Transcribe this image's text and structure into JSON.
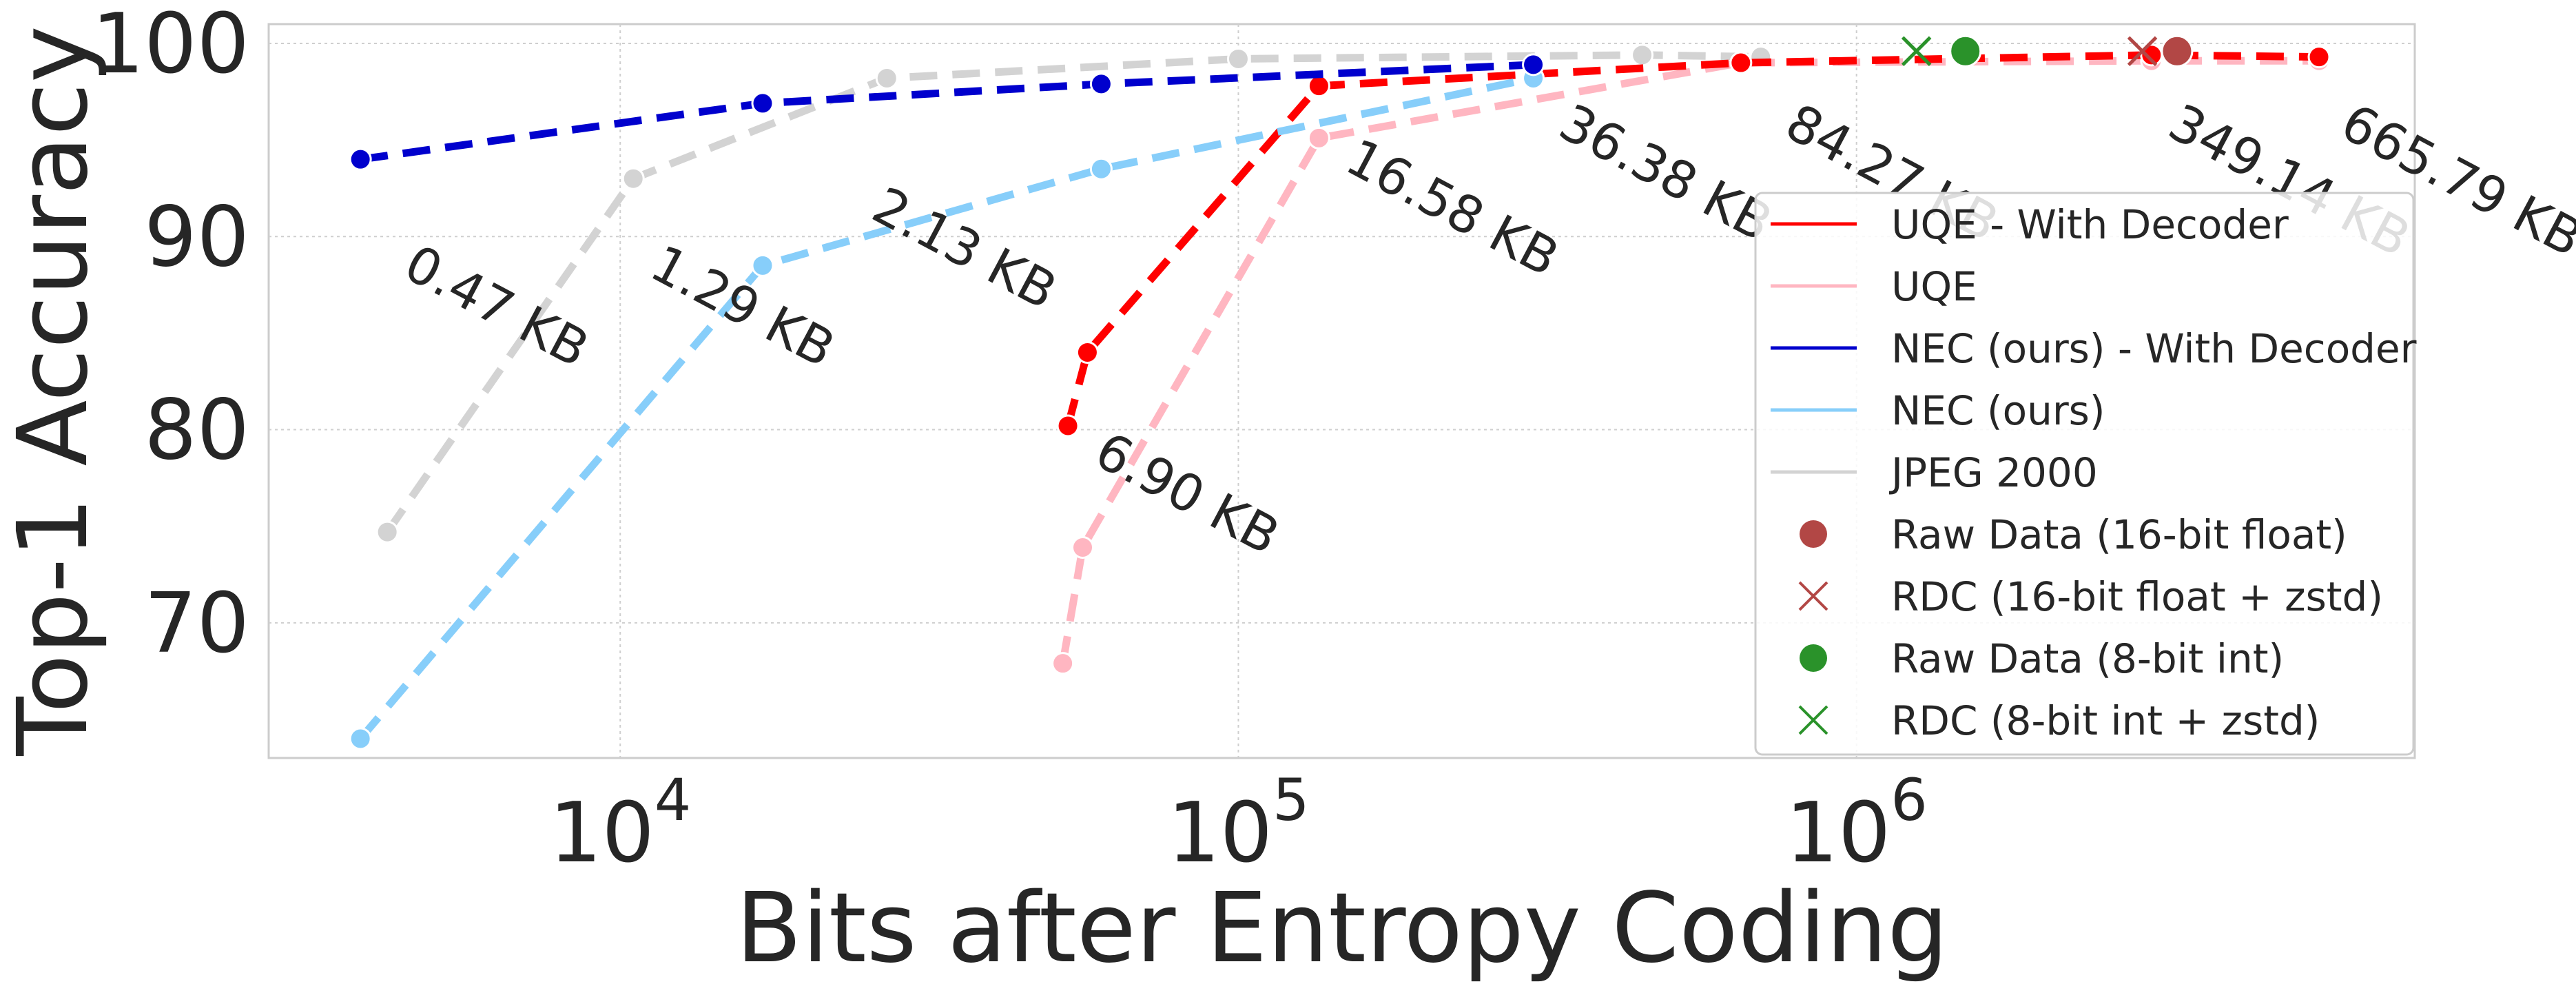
{
  "chart_data": {
    "type": "line",
    "xlabel": "Bits after Entropy Coding",
    "ylabel": "Top-1 Accuracy",
    "xscale": "log",
    "xlim": [
      2700,
      8000000
    ],
    "ylim": [
      63,
      101
    ],
    "grid": true,
    "legend_position": "right",
    "x_ticks": [
      {
        "value": 10000,
        "base": "10",
        "exp": "4"
      },
      {
        "value": 100000,
        "base": "10",
        "exp": "5"
      },
      {
        "value": 1000000,
        "base": "10",
        "exp": "6"
      }
    ],
    "y_ticks": [
      {
        "value": 70,
        "label": "70"
      },
      {
        "value": 80,
        "label": "80"
      },
      {
        "value": 90,
        "label": "90"
      },
      {
        "value": 100,
        "label": "100"
      }
    ],
    "series": [
      {
        "name": "JPEG 2000",
        "color": "#d3d3d3",
        "dashed": true,
        "x": [
          4200,
          10500,
          27000,
          100000,
          450000,
          700000
        ],
        "y": [
          74.7,
          93.0,
          98.2,
          99.2,
          99.4,
          99.3
        ]
      },
      {
        "name": "UQE",
        "color": "#ffb6c1",
        "dashed": true,
        "x": [
          52000,
          56000,
          135000,
          650000,
          3000000,
          5600000
        ],
        "y": [
          67.9,
          73.9,
          95.1,
          99.0,
          99.1,
          99.1
        ]
      },
      {
        "name": "UQE - With Decoder",
        "color": "#ff0000",
        "dashed": true,
        "x": [
          53000,
          57000,
          135000,
          650000,
          3000000,
          5600000
        ],
        "y": [
          80.2,
          84.0,
          97.8,
          99.0,
          99.4,
          99.3
        ]
      },
      {
        "name": "NEC (ours)",
        "color": "#87cefa",
        "dashed": true,
        "x": [
          3800,
          17000,
          60000,
          300000
        ],
        "y": [
          64.0,
          88.5,
          93.5,
          98.2
        ]
      },
      {
        "name": "NEC (ours) - With Decoder",
        "color": "#0000cd",
        "dashed": true,
        "x": [
          3800,
          17000,
          60000,
          300000
        ],
        "y": [
          94.0,
          96.9,
          97.9,
          98.9
        ]
      }
    ],
    "markers": [
      {
        "name": "Raw Data (16-bit float)",
        "shape": "circle",
        "color": "#b24745",
        "x": 3300000,
        "y": 99.6
      },
      {
        "name": "RDC (16-bit float + zstd)",
        "shape": "x",
        "color": "#b24745",
        "x": 2900000,
        "y": 99.6
      },
      {
        "name": "Raw Data (8-bit int)",
        "shape": "circle",
        "color": "#2a922a",
        "x": 1500000,
        "y": 99.6
      },
      {
        "name": "RDC (8-bit int + zstd)",
        "shape": "x",
        "color": "#2a922a",
        "x": 1250000,
        "y": 99.6
      }
    ],
    "annotations": [
      {
        "text": "0.47 KB",
        "x": 4200,
        "y": 88.0
      },
      {
        "text": "1.29 KB",
        "x": 10500,
        "y": 88.0
      },
      {
        "text": "2.13 KB",
        "x": 24000,
        "y": 91.0
      },
      {
        "text": "6.90 KB",
        "x": 55000,
        "y": 78.3
      },
      {
        "text": "16.58 KB",
        "x": 140000,
        "y": 93.5
      },
      {
        "text": "36.38 KB",
        "x": 310000,
        "y": 95.3
      },
      {
        "text": "84.27 KB",
        "x": 720000,
        "y": 95.3
      },
      {
        "text": "349.14 KB",
        "x": 3000000,
        "y": 95.3
      },
      {
        "text": "665.79 KB",
        "x": 5700000,
        "y": 95.3
      }
    ],
    "legend": [
      {
        "label": "UQE - With Decoder",
        "kind": "line",
        "color": "#ff0000"
      },
      {
        "label": "UQE",
        "kind": "line",
        "color": "#ffb6c1"
      },
      {
        "label": "NEC (ours) - With Decoder",
        "kind": "line",
        "color": "#0000cd"
      },
      {
        "label": "NEC (ours)",
        "kind": "line",
        "color": "#87cefa"
      },
      {
        "label": "JPEG 2000",
        "kind": "line",
        "color": "#d3d3d3"
      },
      {
        "label": "Raw Data (16-bit float)",
        "kind": "circle",
        "color": "#b24745"
      },
      {
        "label": "RDC (16-bit float + zstd)",
        "kind": "x",
        "color": "#b24745"
      },
      {
        "label": "Raw Data (8-bit int)",
        "kind": "circle",
        "color": "#2a922a"
      },
      {
        "label": "RDC (8-bit int + zstd)",
        "kind": "x",
        "color": "#2a922a"
      }
    ]
  }
}
